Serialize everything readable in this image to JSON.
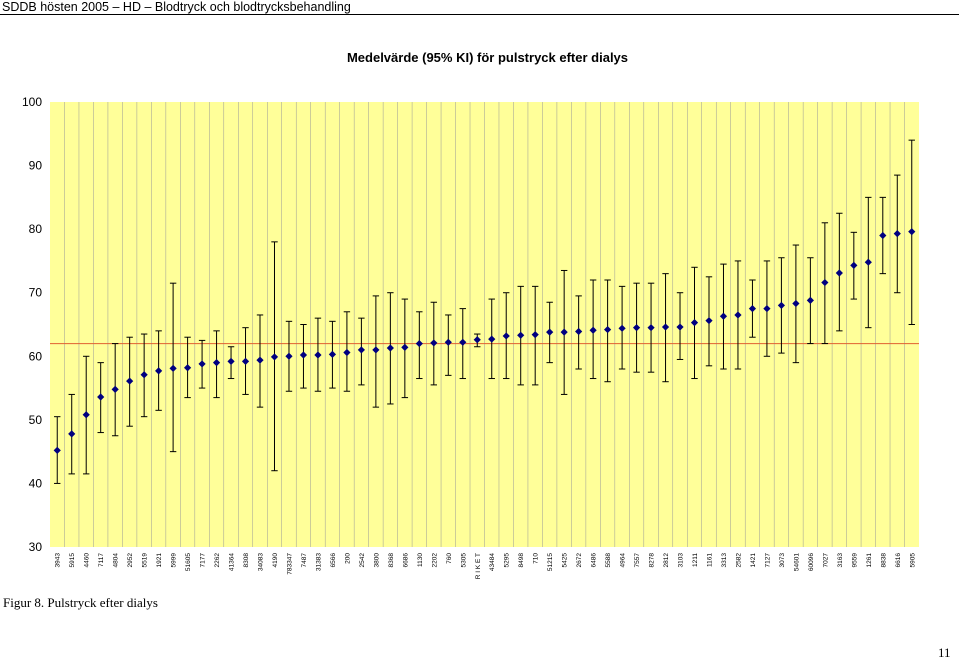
{
  "header": {
    "text": "SDDB hösten 2005 – HD – Blodtryck och blodtrycksbehandling"
  },
  "figure_caption": "Figur 8. Pulstryck efter dialys",
  "page_number": "11",
  "colors": {
    "plot_bg": "#FFFF99",
    "marker": "#000080",
    "reference_line": "#E06030",
    "grid": "#999999"
  },
  "chart_data": {
    "type": "errorbar",
    "title": "Medelvärde (95% KI) för pulstryck efter dialys",
    "xlabel": "",
    "ylabel": "",
    "ylim": [
      30,
      100
    ],
    "yticks": [
      30,
      40,
      50,
      60,
      70,
      80,
      90,
      100
    ],
    "grid": "vertical",
    "reference_line": 62,
    "categories": [
      "3943",
      "5915",
      "4460",
      "7117",
      "4804",
      "2952",
      "5519",
      "1921",
      "5999",
      "51605",
      "7177",
      "2262",
      "41364",
      "8308",
      "34083",
      "4190",
      "783347",
      "7487",
      "31383",
      "6566",
      "200",
      "2542",
      "3800",
      "8368",
      "6686",
      "1130",
      "2202",
      "760",
      "5305",
      "R I K E T",
      "43484",
      "5295",
      "8498",
      "710",
      "51215",
      "5425",
      "2672",
      "6486",
      "5588",
      "4964",
      "7557",
      "8278",
      "2812",
      "3103",
      "1211",
      "1161",
      "3313",
      "2582",
      "1421",
      "7127",
      "3073",
      "54601",
      "60096",
      "7027",
      "3163",
      "9559",
      "1261",
      "8838",
      "6616",
      "5905"
    ],
    "mean": [
      45.2,
      47.8,
      50.8,
      53.6,
      54.8,
      56.1,
      57.1,
      57.7,
      58.1,
      58.2,
      58.8,
      59.0,
      59.2,
      59.2,
      59.4,
      59.9,
      60.0,
      60.2,
      60.2,
      60.3,
      60.6,
      61.0,
      61.0,
      61.3,
      61.4,
      62.0,
      62.1,
      62.2,
      62.2,
      62.6,
      62.7,
      63.2,
      63.3,
      63.4,
      63.8,
      63.8,
      63.9,
      64.1,
      64.2,
      64.4,
      64.5,
      64.5,
      64.6,
      64.6,
      65.3,
      65.6,
      66.3,
      66.5,
      67.5,
      67.5,
      68.0,
      68.3,
      68.8,
      71.6,
      73.1,
      74.3,
      74.8,
      79.0,
      79.3,
      79.6
    ],
    "lower": [
      40.0,
      41.5,
      41.5,
      48.0,
      47.5,
      49.0,
      50.5,
      51.5,
      45.0,
      53.5,
      55.0,
      53.5,
      56.5,
      54.0,
      52.0,
      42.0,
      54.5,
      55.0,
      54.5,
      55.0,
      54.5,
      55.5,
      52.0,
      52.5,
      53.5,
      56.5,
      55.5,
      57.0,
      56.5,
      61.5,
      56.5,
      56.5,
      55.5,
      55.5,
      59.0,
      54.0,
      58.0,
      56.5,
      56.0,
      58.0,
      57.5,
      57.5,
      56.0,
      59.5,
      56.5,
      58.5,
      58.0,
      58.0,
      63.0,
      60.0,
      60.5,
      59.0,
      62.0,
      62.0,
      64.0,
      69.0,
      64.5,
      73.0,
      70.0,
      65.0
    ],
    "upper": [
      50.5,
      54.0,
      60.0,
      59.0,
      62.0,
      63.0,
      63.5,
      64.0,
      71.5,
      63.0,
      62.5,
      64.0,
      61.5,
      64.5,
      66.5,
      78.0,
      65.5,
      65.0,
      66.0,
      65.5,
      67.0,
      66.0,
      69.5,
      70.0,
      69.0,
      67.0,
      68.5,
      66.5,
      67.5,
      63.5,
      69.0,
      70.0,
      71.0,
      71.0,
      68.5,
      73.5,
      69.5,
      72.0,
      72.0,
      71.0,
      71.5,
      71.5,
      73.0,
      70.0,
      74.0,
      72.5,
      74.5,
      75.0,
      72.0,
      75.0,
      75.5,
      77.5,
      75.5,
      81.0,
      82.5,
      79.5,
      85.0,
      85.0,
      88.5,
      94.0
    ]
  }
}
